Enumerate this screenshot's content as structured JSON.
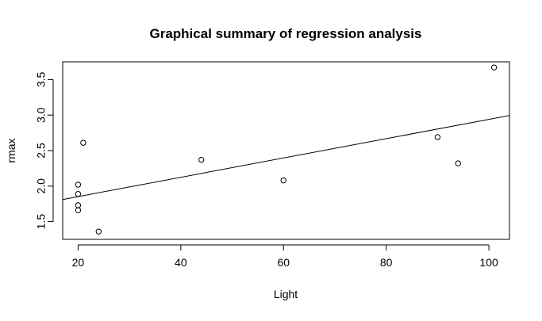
{
  "chart_data": {
    "type": "scatter",
    "title": "Graphical summary of regression analysis",
    "xlabel": "Light",
    "ylabel": "rmax",
    "xlim": [
      17,
      104
    ],
    "ylim": [
      1.25,
      3.75
    ],
    "x_ticks": [
      20,
      40,
      60,
      80,
      100
    ],
    "y_ticks": [
      1.5,
      2.0,
      2.5,
      3.0,
      3.5
    ],
    "x_tick_labels": [
      "20",
      "40",
      "60",
      "80",
      "100"
    ],
    "y_tick_labels": [
      "1.5",
      "2.0",
      "2.5",
      "3.0",
      "3.5"
    ],
    "grid": false,
    "points": [
      {
        "x": 20,
        "y": 2.02
      },
      {
        "x": 20,
        "y": 1.89
      },
      {
        "x": 20,
        "y": 1.73
      },
      {
        "x": 20,
        "y": 1.66
      },
      {
        "x": 21,
        "y": 2.61
      },
      {
        "x": 24,
        "y": 1.36
      },
      {
        "x": 44,
        "y": 2.37
      },
      {
        "x": 60,
        "y": 2.08
      },
      {
        "x": 90,
        "y": 2.69
      },
      {
        "x": 94,
        "y": 2.32
      },
      {
        "x": 101,
        "y": 3.67
      }
    ],
    "regression_line": {
      "intercept": 1.58,
      "slope": 0.0136
    }
  }
}
